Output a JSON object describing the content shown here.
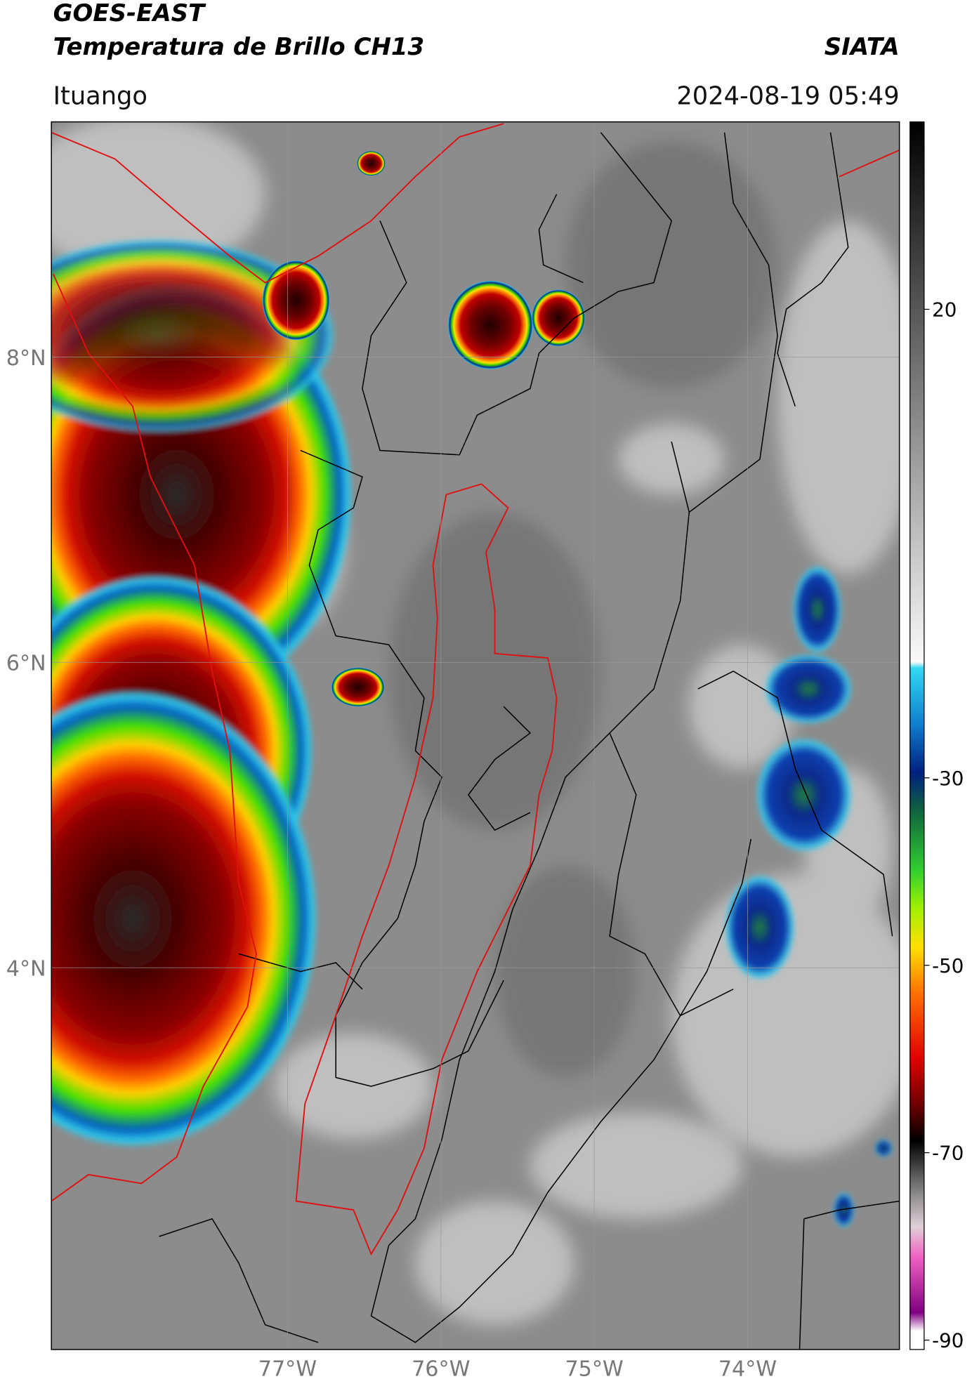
{
  "header": {
    "title": "GOES-EAST",
    "subtitle": "Temperatura de Brillo CH13",
    "agency": "SIATA",
    "region": "Ituango",
    "timestamp": "2024-08-19 05:49"
  },
  "map": {
    "lon_lim": [
      -78.54,
      -73.01
    ],
    "lat_lim": [
      1.5,
      9.54
    ],
    "grid": true,
    "lon_ticks": [
      {
        "value": -77,
        "label": "77°W"
      },
      {
        "value": -76,
        "label": "76°W"
      },
      {
        "value": -75,
        "label": "75°W"
      },
      {
        "value": -74,
        "label": "74°W"
      }
    ],
    "lat_ticks": [
      {
        "value": 8,
        "label": "8°N"
      },
      {
        "value": 6,
        "label": "6°N"
      },
      {
        "value": 4,
        "label": "4°N"
      }
    ]
  },
  "colorbar": {
    "lim": [
      -91,
      40
    ],
    "ticks": [
      20,
      -30,
      -50,
      -70,
      -90
    ]
  }
}
